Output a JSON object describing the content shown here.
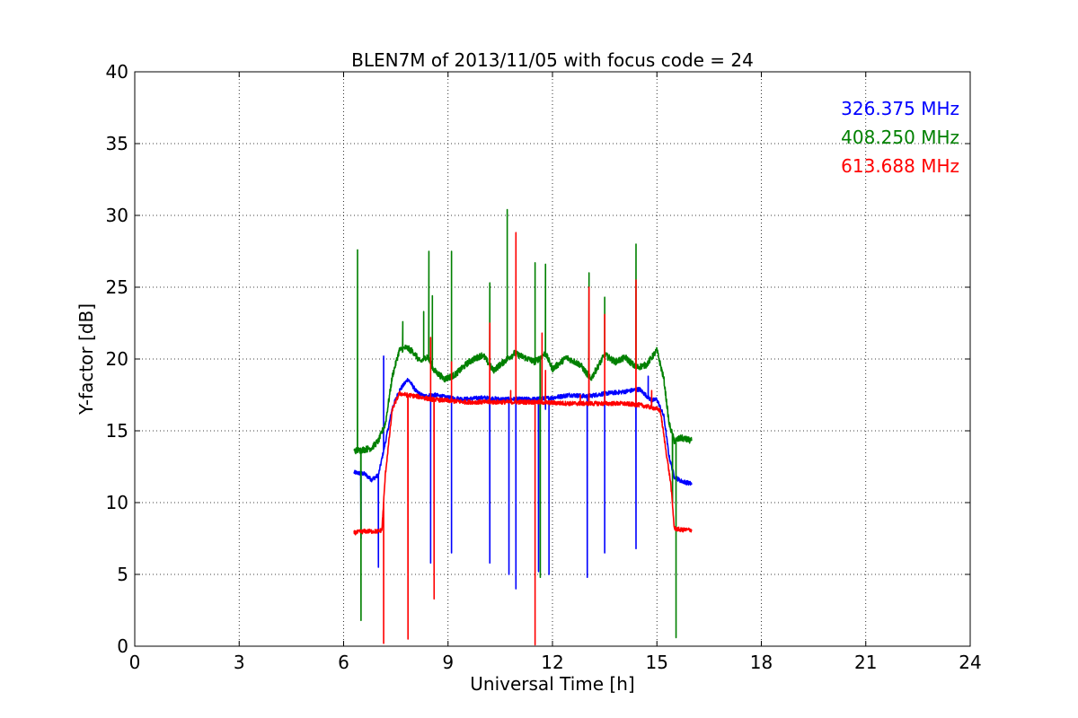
{
  "chart_data": {
    "type": "line",
    "title": "BLEN7M of 2013/11/05 with focus code = 24",
    "xlabel": "Universal Time [h]",
    "ylabel": "Y-factor [dB]",
    "xlim": [
      0,
      24
    ],
    "ylim": [
      0,
      40
    ],
    "xticks": [
      "0",
      "3",
      "6",
      "9",
      "12",
      "15",
      "18",
      "21",
      "24"
    ],
    "yticks": [
      "0",
      "5",
      "10",
      "15",
      "20",
      "25",
      "30",
      "35",
      "40"
    ],
    "grid": true,
    "legend_position": "top-right",
    "series": [
      {
        "name": "326.375 MHz",
        "color": "#0000ff",
        "points": [
          [
            6.3,
            12.1
          ],
          [
            6.6,
            12.0
          ],
          [
            6.8,
            11.6
          ],
          [
            7.0,
            11.9
          ],
          [
            7.2,
            14.2
          ],
          [
            7.4,
            16.6
          ],
          [
            7.6,
            17.8
          ],
          [
            7.85,
            18.6
          ],
          [
            8.1,
            17.7
          ],
          [
            8.3,
            17.4
          ],
          [
            8.6,
            17.5
          ],
          [
            9.0,
            17.3
          ],
          [
            9.5,
            17.2
          ],
          [
            10.0,
            17.3
          ],
          [
            10.5,
            17.2
          ],
          [
            11.0,
            17.2
          ],
          [
            11.5,
            17.2
          ],
          [
            12.0,
            17.3
          ],
          [
            12.5,
            17.5
          ],
          [
            13.0,
            17.4
          ],
          [
            13.5,
            17.6
          ],
          [
            14.0,
            17.7
          ],
          [
            14.5,
            17.9
          ],
          [
            14.85,
            17.1
          ],
          [
            15.0,
            17.2
          ],
          [
            15.2,
            16.0
          ],
          [
            15.35,
            13.2
          ],
          [
            15.5,
            11.8
          ],
          [
            15.7,
            11.5
          ],
          [
            16.0,
            11.3
          ]
        ],
        "spikes": [
          [
            6.5,
            7.5
          ],
          [
            7.0,
            5.5
          ],
          [
            7.15,
            20.2
          ],
          [
            8.5,
            5.8
          ],
          [
            9.1,
            6.5
          ],
          [
            10.2,
            5.8
          ],
          [
            10.75,
            5.0
          ],
          [
            10.95,
            4.0
          ],
          [
            11.6,
            5.2
          ],
          [
            11.8,
            16.5
          ],
          [
            11.9,
            5.0
          ],
          [
            13.0,
            4.8
          ],
          [
            13.5,
            6.5
          ],
          [
            14.4,
            6.8
          ],
          [
            14.75,
            18.8
          ]
        ]
      },
      {
        "name": "408.250 MHz",
        "color": "#008000",
        "points": [
          [
            6.3,
            13.6
          ],
          [
            6.6,
            13.7
          ],
          [
            6.8,
            13.8
          ],
          [
            7.0,
            14.3
          ],
          [
            7.2,
            15.5
          ],
          [
            7.4,
            18.8
          ],
          [
            7.6,
            20.6
          ],
          [
            7.8,
            20.8
          ],
          [
            8.0,
            20.5
          ],
          [
            8.2,
            19.8
          ],
          [
            8.4,
            20.2
          ],
          [
            8.6,
            19.2
          ],
          [
            8.9,
            18.6
          ],
          [
            9.2,
            18.9
          ],
          [
            9.6,
            19.8
          ],
          [
            10.0,
            20.3
          ],
          [
            10.3,
            19.2
          ],
          [
            10.6,
            19.8
          ],
          [
            10.9,
            20.4
          ],
          [
            11.2,
            20.1
          ],
          [
            11.5,
            19.8
          ],
          [
            11.8,
            20.4
          ],
          [
            12.0,
            19.3
          ],
          [
            12.4,
            20.1
          ],
          [
            12.8,
            19.6
          ],
          [
            13.1,
            18.6
          ],
          [
            13.5,
            20.3
          ],
          [
            13.8,
            19.8
          ],
          [
            14.1,
            20.1
          ],
          [
            14.4,
            19.4
          ],
          [
            14.7,
            19.6
          ],
          [
            15.0,
            20.6
          ],
          [
            15.2,
            18.6
          ],
          [
            15.35,
            15.5
          ],
          [
            15.5,
            14.3
          ],
          [
            15.7,
            14.5
          ],
          [
            16.0,
            14.3
          ]
        ],
        "spikes": [
          [
            6.4,
            27.6
          ],
          [
            6.5,
            1.8
          ],
          [
            7.7,
            22.6
          ],
          [
            8.3,
            23.3
          ],
          [
            8.45,
            27.5
          ],
          [
            8.55,
            24.4
          ],
          [
            9.1,
            27.5
          ],
          [
            10.2,
            25.3
          ],
          [
            10.7,
            30.4
          ],
          [
            11.5,
            26.7
          ],
          [
            11.65,
            4.8
          ],
          [
            11.8,
            26.6
          ],
          [
            13.05,
            26.0
          ],
          [
            13.5,
            24.3
          ],
          [
            14.4,
            28.0
          ],
          [
            15.45,
            10.0
          ],
          [
            15.55,
            0.6
          ]
        ]
      },
      {
        "name": "613.688 MHz",
        "color": "#ff0000",
        "points": [
          [
            6.3,
            7.9
          ],
          [
            6.6,
            8.0
          ],
          [
            7.0,
            8.0
          ],
          [
            7.1,
            8.1
          ],
          [
            7.2,
            12.0
          ],
          [
            7.4,
            16.5
          ],
          [
            7.6,
            17.6
          ],
          [
            7.8,
            17.5
          ],
          [
            8.1,
            17.4
          ],
          [
            8.5,
            17.2
          ],
          [
            9.0,
            17.1
          ],
          [
            9.5,
            17.0
          ],
          [
            10.0,
            17.0
          ],
          [
            10.5,
            17.0
          ],
          [
            11.0,
            17.0
          ],
          [
            11.5,
            17.0
          ],
          [
            12.0,
            16.95
          ],
          [
            12.5,
            16.9
          ],
          [
            13.0,
            16.9
          ],
          [
            13.5,
            16.9
          ],
          [
            14.0,
            16.9
          ],
          [
            14.5,
            16.8
          ],
          [
            14.9,
            16.6
          ],
          [
            15.1,
            16.4
          ],
          [
            15.25,
            13.8
          ],
          [
            15.4,
            11.3
          ],
          [
            15.5,
            8.2
          ],
          [
            15.7,
            8.1
          ],
          [
            16.0,
            8.1
          ]
        ],
        "spikes": [
          [
            7.15,
            0.2
          ],
          [
            7.85,
            0.5
          ],
          [
            8.5,
            21.5
          ],
          [
            8.6,
            3.3
          ],
          [
            9.1,
            19.8
          ],
          [
            10.2,
            22.5
          ],
          [
            10.8,
            17.8
          ],
          [
            10.95,
            28.8
          ],
          [
            11.5,
            0.1
          ],
          [
            11.7,
            21.8
          ],
          [
            11.8,
            19.2
          ],
          [
            12.8,
            17.5
          ],
          [
            13.05,
            25.0
          ],
          [
            13.5,
            23.1
          ],
          [
            14.4,
            25.5
          ],
          [
            14.85,
            17.8
          ]
        ]
      }
    ]
  }
}
